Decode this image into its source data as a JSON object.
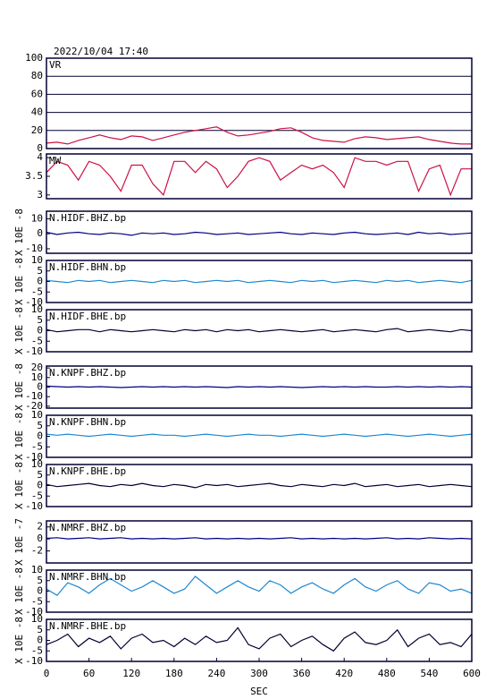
{
  "chart_data": {
    "title": "2022/10/04  17:40",
    "xlabel": "SEC",
    "xlim": [
      0,
      600
    ],
    "xticks": [
      0,
      60,
      120,
      180,
      240,
      300,
      360,
      420,
      480,
      540,
      600
    ],
    "x": [
      0,
      15,
      30,
      45,
      60,
      75,
      90,
      105,
      120,
      135,
      150,
      165,
      180,
      195,
      210,
      225,
      240,
      255,
      270,
      285,
      300,
      315,
      330,
      345,
      360,
      375,
      390,
      405,
      420,
      435,
      450,
      465,
      480,
      495,
      510,
      525,
      540,
      555,
      570,
      585,
      600
    ],
    "panels": [
      {
        "type": "line",
        "label": "VR",
        "color": "#cc1144",
        "grid": true,
        "ylim": [
          0,
          100
        ],
        "yticks": [
          0,
          20,
          40,
          60,
          80,
          100
        ],
        "values": [
          6,
          7,
          5,
          9,
          12,
          15,
          12,
          10,
          14,
          13,
          9,
          12,
          15,
          18,
          20,
          22,
          24,
          18,
          14,
          15,
          17,
          19,
          22,
          23,
          18,
          12,
          9,
          8,
          7,
          11,
          13,
          12,
          10,
          11,
          12,
          13,
          10,
          8,
          6,
          5,
          5
        ]
      },
      {
        "type": "line",
        "label": "MW",
        "color": "#cc1144",
        "grid": false,
        "ylim": [
          2.9,
          4.1
        ],
        "yticks": [
          3.0,
          3.5,
          4.0
        ],
        "values": [
          3.6,
          3.9,
          3.8,
          3.4,
          3.9,
          3.8,
          3.5,
          3.1,
          3.8,
          3.8,
          3.3,
          3.0,
          3.9,
          3.9,
          3.6,
          3.9,
          3.7,
          3.2,
          3.5,
          3.9,
          4.0,
          3.9,
          3.4,
          3.6,
          3.8,
          3.7,
          3.8,
          3.6,
          3.2,
          4.0,
          3.9,
          3.9,
          3.8,
          3.9,
          3.9,
          3.1,
          3.7,
          3.8,
          3.0,
          3.7,
          3.7
        ]
      },
      {
        "type": "line",
        "label": "N.HIDF.BHZ.bp",
        "unit": "X 10E -8",
        "color": "#000080",
        "grid": false,
        "ylim": [
          -13,
          15
        ],
        "yticks": [
          -10,
          0,
          10
        ],
        "values": [
          1,
          -0.5,
          0.5,
          1,
          0,
          -0.5,
          0.5,
          0,
          -1,
          0.5,
          0,
          0.5,
          -0.5,
          0,
          1,
          0.5,
          -0.5,
          0,
          0.5,
          -0.5,
          0,
          0.5,
          1,
          0,
          -0.5,
          0.5,
          0,
          -0.5,
          0.5,
          1,
          0,
          -0.5,
          0,
          0.5,
          -0.5,
          1,
          0,
          0.5,
          -0.5,
          0,
          0.5
        ]
      },
      {
        "type": "line",
        "label": "N.HIDF.BHN.bp",
        "unit": "X 10E -8",
        "color": "#1e88d0",
        "grid": false,
        "ylim": [
          -10,
          10
        ],
        "yticks": [
          -10,
          -5,
          0,
          5,
          10
        ],
        "values": [
          0.5,
          0,
          -0.5,
          0.5,
          0,
          0.5,
          -0.5,
          0,
          0.5,
          0,
          -0.5,
          0.5,
          0,
          0.5,
          -0.5,
          0,
          0.5,
          0,
          0.5,
          -0.5,
          0,
          0.5,
          0,
          -0.5,
          0.5,
          0,
          0.5,
          -0.5,
          0,
          0.5,
          0,
          -0.5,
          0.5,
          0,
          0.5,
          -0.5,
          0,
          0.5,
          0,
          -0.5,
          0.5
        ]
      },
      {
        "type": "line",
        "label": "N.HIDF.BHE.bp",
        "unit": "X 10E -8",
        "color": "#000033",
        "grid": false,
        "ylim": [
          -10,
          10
        ],
        "yticks": [
          -10,
          -5,
          0,
          5,
          10
        ],
        "values": [
          0.5,
          -0.5,
          0,
          0.5,
          0.5,
          -0.5,
          0.5,
          0,
          -0.5,
          0,
          0.5,
          0,
          -0.5,
          0.5,
          0,
          0.5,
          -0.5,
          0.5,
          0,
          0.5,
          -0.5,
          0,
          0.5,
          0,
          -0.5,
          0,
          0.5,
          -0.5,
          0,
          0.5,
          0,
          -0.5,
          0.5,
          1,
          -0.5,
          0,
          0.5,
          0,
          -0.5,
          0.5,
          0
        ]
      },
      {
        "type": "line",
        "label": "N.KNPF.BHZ.bp",
        "unit": "X 10E -8",
        "color": "#000080",
        "grid": false,
        "ylim": [
          -22,
          22
        ],
        "yticks": [
          -20,
          -10,
          0,
          10,
          20
        ],
        "values": [
          1,
          0.5,
          0,
          0.5,
          0,
          0.5,
          0,
          -0.5,
          0,
          0.5,
          0,
          0.5,
          0,
          0.5,
          0,
          0.5,
          0,
          -0.5,
          0.5,
          0,
          0.5,
          0,
          0.5,
          0,
          -0.5,
          0,
          0.5,
          0,
          0.5,
          0,
          0.5,
          0,
          0,
          0.5,
          0,
          0.5,
          0,
          0.5,
          0,
          0.5,
          0
        ]
      },
      {
        "type": "line",
        "label": "N.KNPF.BHN.bp",
        "unit": "X 10E -8",
        "color": "#1e88d0",
        "grid": false,
        "ylim": [
          -10,
          10
        ],
        "yticks": [
          -10,
          -5,
          0,
          5,
          10
        ],
        "values": [
          1,
          0.5,
          1,
          0.5,
          0,
          0.5,
          1,
          0.5,
          0,
          0.5,
          1,
          0.5,
          0.5,
          0,
          0.5,
          1,
          0.5,
          0,
          0.5,
          1,
          0.5,
          0.5,
          0,
          0.5,
          1,
          0.5,
          0,
          0.5,
          1,
          0.5,
          0,
          0.5,
          1,
          0.5,
          0,
          0.5,
          1,
          0.5,
          0,
          0.5,
          1
        ]
      },
      {
        "type": "line",
        "label": "N.KNPF.BHE.bp",
        "unit": "X 10E -8",
        "color": "#000033",
        "grid": false,
        "ylim": [
          -10,
          10
        ],
        "yticks": [
          -10,
          -5,
          0,
          5,
          10
        ],
        "values": [
          0.5,
          -0.5,
          0,
          0.5,
          1,
          0,
          -0.5,
          0.5,
          0,
          1,
          0,
          -0.5,
          0.5,
          0,
          -1,
          0.5,
          0,
          0.5,
          -0.5,
          0,
          0.5,
          1,
          0,
          -0.5,
          0.5,
          0,
          -0.5,
          0.5,
          0,
          1,
          -0.5,
          0,
          0.5,
          -0.5,
          0,
          0.5,
          -0.5,
          0,
          0.5,
          0,
          -0.5
        ]
      },
      {
        "type": "line",
        "label": "N.NMRF.BHZ.bp",
        "unit": "X 10E -7",
        "color": "#000080",
        "grid": false,
        "ylim": [
          -4,
          3
        ],
        "yticks": [
          -2,
          0,
          2
        ],
        "values": [
          0.1,
          0.2,
          0,
          0.1,
          0.2,
          0,
          0.1,
          0.2,
          0,
          0.1,
          0,
          0.1,
          0,
          0.1,
          0.2,
          0,
          0.1,
          0,
          0.1,
          0,
          0.1,
          0,
          0.1,
          0.2,
          0,
          0.1,
          0,
          0.1,
          0,
          0.1,
          0,
          0.1,
          0.2,
          0,
          0.1,
          0,
          0.2,
          0.1,
          0,
          0.1,
          0
        ]
      },
      {
        "type": "line",
        "label": "N.NMRF.BHN.bp",
        "unit": "X 10E -8",
        "color": "#1e88d0",
        "grid": false,
        "ylim": [
          -10,
          10
        ],
        "yticks": [
          -10,
          -5,
          0,
          5,
          10
        ],
        "values": [
          1,
          -2,
          4,
          2,
          -1,
          3,
          6,
          3,
          0,
          2,
          5,
          2,
          -1,
          1,
          7,
          3,
          -1,
          2,
          5,
          2,
          0,
          5,
          3,
          -1,
          2,
          4,
          1,
          -1,
          3,
          6,
          2,
          0,
          3,
          5,
          1,
          -1,
          4,
          3,
          0,
          1,
          -1
        ]
      },
      {
        "type": "line",
        "label": "N.NMRF.BHE.bp",
        "unit": "X 10E -8",
        "color": "#000033",
        "grid": false,
        "ylim": [
          -10,
          10
        ],
        "yticks": [
          -10,
          -5,
          0,
          5,
          10
        ],
        "values": [
          -2,
          0,
          3,
          -3,
          1,
          -1,
          2,
          -4,
          1,
          3,
          -1,
          0,
          -3,
          1,
          -2,
          2,
          -1,
          0,
          6,
          -2,
          -4,
          1,
          3,
          -3,
          0,
          2,
          -2,
          -5,
          1,
          4,
          -1,
          -2,
          0,
          5,
          -3,
          1,
          3,
          -2,
          -1,
          -3,
          3
        ]
      }
    ]
  }
}
